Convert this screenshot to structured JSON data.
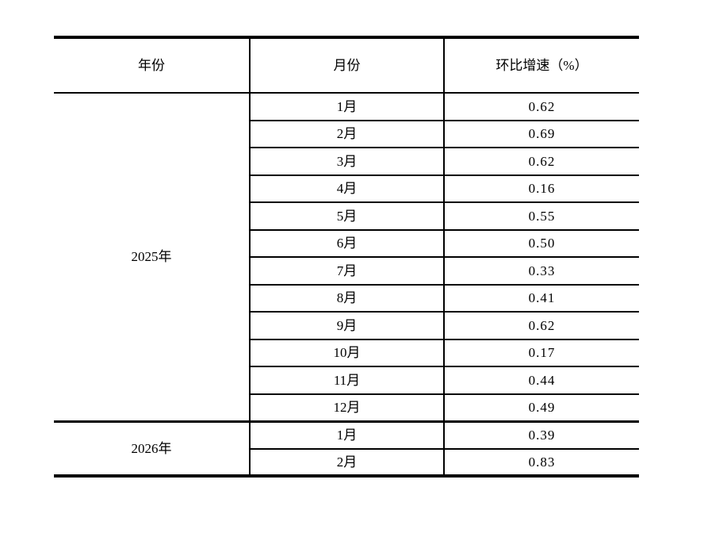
{
  "table": {
    "headers": [
      "年份",
      "月份",
      "环比增速（%）"
    ],
    "groups": [
      {
        "year": "2025年",
        "rows": [
          {
            "month": "1月",
            "value": "0.62"
          },
          {
            "month": "2月",
            "value": "0.69"
          },
          {
            "month": "3月",
            "value": "0.62"
          },
          {
            "month": "4月",
            "value": "0.16"
          },
          {
            "month": "5月",
            "value": "0.55"
          },
          {
            "month": "6月",
            "value": "0.50"
          },
          {
            "month": "7月",
            "value": "0.33"
          },
          {
            "month": "8月",
            "value": "0.41"
          },
          {
            "month": "9月",
            "value": "0.62"
          },
          {
            "month": "10月",
            "value": "0.17"
          },
          {
            "month": "11月",
            "value": "0.44"
          },
          {
            "month": "12月",
            "value": "0.49"
          }
        ]
      },
      {
        "year": "2026年",
        "rows": [
          {
            "month": "1月",
            "value": "0.39"
          },
          {
            "month": "2月",
            "value": "0.83"
          }
        ]
      }
    ]
  },
  "colors": {
    "border": "#000000",
    "text": "#000000",
    "background": "#ffffff"
  }
}
